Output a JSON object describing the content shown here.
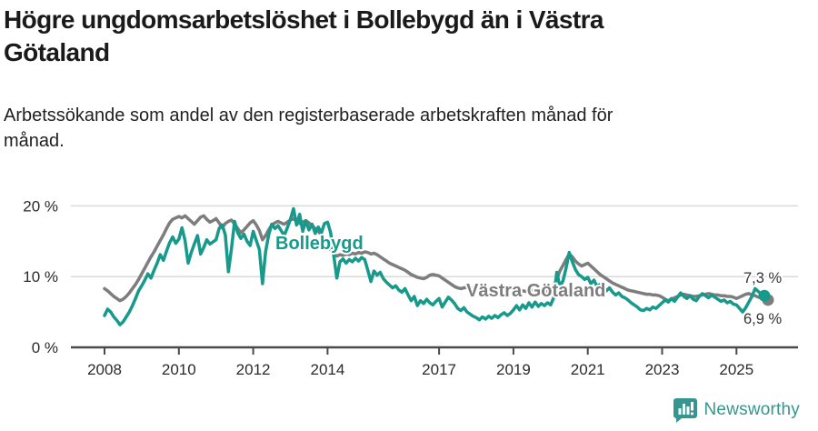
{
  "header": {
    "title": "Högre ungdomsarbetslöshet i Bollebygd än i Västra Götaland",
    "subtitle": "Arbetssökande som andel av den registerbaserade arbetskraften månad för månad."
  },
  "chart_data": {
    "type": "line",
    "title": "Högre ungdomsarbetslöshet i Bollebygd än i Västra Götaland",
    "subtitle": "Arbetssökande som andel av den registerbaserade arbetskraften månad för månad.",
    "unit": "%",
    "x_start_year": 2008,
    "x_step_months": 1,
    "x_range": [
      2008,
      2025.75
    ],
    "ylim": [
      0,
      21
    ],
    "grid": "horizontal",
    "legend": "inline-labels",
    "yticks": [
      {
        "value": 20,
        "label": "20 %"
      },
      {
        "value": 10,
        "label": "10 %"
      },
      {
        "value": 0,
        "label": "0 %"
      }
    ],
    "xticks": [
      {
        "year": 2008,
        "label": "2008"
      },
      {
        "year": 2010,
        "label": "2010"
      },
      {
        "year": 2012,
        "label": "2012"
      },
      {
        "year": 2014,
        "label": "2014"
      },
      {
        "year": 2017,
        "label": "2017"
      },
      {
        "year": 2019,
        "label": "2019"
      },
      {
        "year": 2021,
        "label": "2021"
      },
      {
        "year": 2023,
        "label": "2023"
      },
      {
        "year": 2025,
        "label": "2025"
      }
    ],
    "axis_color": "#4a4a4a",
    "grid_color": "#dadada",
    "text_color": "#2b2b2b",
    "series": [
      {
        "name": "Västra Götaland",
        "color": "#7d7d7d",
        "end_label": "6,9 %",
        "end_value": 6.9,
        "values": [
          8.3,
          8.0,
          7.6,
          7.2,
          6.9,
          6.6,
          6.8,
          7.2,
          7.7,
          8.3,
          8.9,
          9.6,
          10.4,
          11.2,
          12.0,
          12.8,
          13.5,
          14.3,
          15.1,
          15.9,
          16.8,
          17.6,
          18.1,
          18.3,
          18.5,
          18.3,
          18.6,
          18.2,
          17.8,
          17.4,
          17.9,
          18.4,
          18.6,
          18.1,
          17.7,
          17.9,
          18.2,
          17.6,
          16.9,
          17.5,
          17.8,
          18.0,
          17.4,
          16.8,
          16.2,
          16.6,
          17.1,
          17.6,
          17.9,
          17.3,
          16.5,
          15.2,
          15.8,
          16.6,
          17.3,
          17.6,
          17.8,
          17.6,
          17.4,
          17.7,
          18.0,
          18.2,
          17.8,
          17.5,
          17.7,
          17.9,
          17.6,
          17.2,
          16.8,
          16.4,
          15.9,
          15.2,
          14.5,
          13.8,
          13.2,
          12.9,
          13.1,
          13.0,
          13.2,
          13.1,
          13.3,
          13.2,
          13.4,
          13.3,
          13.5,
          13.4,
          13.2,
          13.3,
          13.1,
          12.8,
          12.5,
          12.2,
          11.9,
          11.7,
          11.5,
          11.3,
          11.1,
          10.9,
          10.6,
          10.3,
          10.1,
          9.9,
          9.8,
          9.7,
          9.9,
          10.2,
          10.3,
          10.2,
          10.1,
          9.8,
          9.5,
          9.2,
          8.9,
          8.6,
          8.4,
          8.3,
          8.4,
          8.5,
          8.4,
          8.3,
          8.4,
          8.3,
          8.2,
          8.1,
          8.2,
          8.3,
          8.4,
          8.5,
          8.4,
          8.3,
          8.4,
          8.5,
          8.4,
          8.3,
          8.1,
          8.0,
          7.9,
          8.0,
          8.1,
          8.0,
          7.9,
          7.8,
          7.9,
          8.0,
          8.3,
          8.8,
          9.6,
          10.8,
          11.6,
          12.4,
          13.2,
          12.8,
          12.2,
          11.8,
          11.5,
          11.7,
          11.9,
          11.5,
          11.1,
          10.7,
          10.3,
          10.0,
          9.7,
          9.4,
          9.1,
          8.9,
          8.7,
          8.5,
          8.3,
          8.1,
          8.0,
          7.9,
          7.8,
          7.7,
          7.6,
          7.5,
          7.5,
          7.4,
          7.4,
          7.3,
          7.1,
          6.8,
          6.6,
          6.8,
          7.0,
          7.2,
          7.4,
          7.5,
          7.4,
          7.3,
          7.2,
          7.2,
          7.3,
          7.4,
          7.5,
          7.6,
          7.5,
          7.4,
          7.4,
          7.3,
          7.3,
          7.2,
          7.2,
          7.1,
          6.9,
          7.1,
          7.3,
          7.5,
          7.6,
          7.4,
          7.3,
          7.1,
          7.0,
          6.9
        ]
      },
      {
        "name": "Bollebygd",
        "color": "#17998b",
        "end_label": "7,3 %",
        "end_value": 7.3,
        "values": [
          4.5,
          5.4,
          5.0,
          4.3,
          3.8,
          3.2,
          3.6,
          4.3,
          5.0,
          5.9,
          6.9,
          8.0,
          8.7,
          9.5,
          10.4,
          9.8,
          10.9,
          11.9,
          13.1,
          12.3,
          13.6,
          14.8,
          15.6,
          14.7,
          15.3,
          16.9,
          15.1,
          11.9,
          13.4,
          14.6,
          15.8,
          13.2,
          14.1,
          15.2,
          14.6,
          14.9,
          15.2,
          16.8,
          17.3,
          15.9,
          10.7,
          14.0,
          17.8,
          16.2,
          15.4,
          16.0,
          15.0,
          14.4,
          16.4,
          15.1,
          13.8,
          9.0,
          13.5,
          15.9,
          17.4,
          16.8,
          17.2,
          16.5,
          15.8,
          16.9,
          18.1,
          19.6,
          17.3,
          18.8,
          16.4,
          17.9,
          16.6,
          17.4,
          16.1,
          17.0,
          16.2,
          17.5,
          17.7,
          16.2,
          13.0,
          9.8,
          12.1,
          12.5,
          11.9,
          12.4,
          12.1,
          12.6,
          12.2,
          12.7,
          12.4,
          10.9,
          9.3,
          10.8,
          10.2,
          10.6,
          9.7,
          9.2,
          8.8,
          8.4,
          8.7,
          8.1,
          7.8,
          8.3,
          7.4,
          6.6,
          7.2,
          5.9,
          6.6,
          6.2,
          6.8,
          6.3,
          6.0,
          6.5,
          6.9,
          5.7,
          6.4,
          7.1,
          6.7,
          6.2,
          5.5,
          5.2,
          5.6,
          5.0,
          4.7,
          4.4,
          4.2,
          3.9,
          4.3,
          4.0,
          4.4,
          4.1,
          4.5,
          4.2,
          4.6,
          4.9,
          4.5,
          4.8,
          5.3,
          5.9,
          5.3,
          6.0,
          5.5,
          6.3,
          5.7,
          6.4,
          5.8,
          6.2,
          5.9,
          6.3,
          6.0,
          7.0,
          10.6,
          8.6,
          9.4,
          11.2,
          13.4,
          12.1,
          11.0,
          10.3,
          10.0,
          9.6,
          9.9,
          9.0,
          9.5,
          8.6,
          8.9,
          8.3,
          8.0,
          8.4,
          7.8,
          7.4,
          7.7,
          7.2,
          7.0,
          6.7,
          6.3,
          6.0,
          5.7,
          5.3,
          5.2,
          5.5,
          5.3,
          5.7,
          5.5,
          5.9,
          6.3,
          6.7,
          6.4,
          6.9,
          6.5,
          7.1,
          7.7,
          7.2,
          6.9,
          7.3,
          6.8,
          6.6,
          7.2,
          7.6,
          7.3,
          7.0,
          7.4,
          7.1,
          6.8,
          6.5,
          6.7,
          6.3,
          6.5,
          6.1,
          6.0,
          5.5,
          5.0,
          5.6,
          6.4,
          7.2,
          8.3,
          7.9,
          7.5,
          7.3
        ]
      }
    ]
  },
  "footer": {
    "brand": "Newsworthy",
    "brand_color": "#36968f"
  }
}
